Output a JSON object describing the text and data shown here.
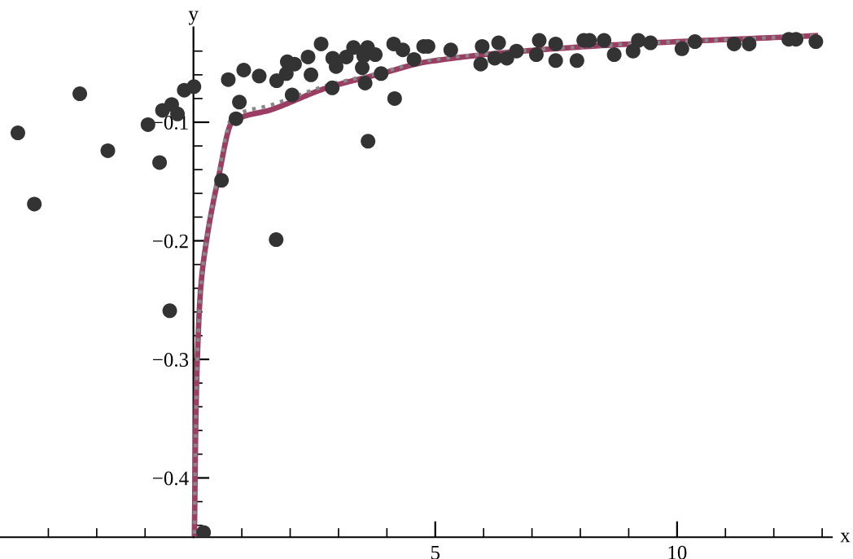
{
  "chart_data": {
    "type": "scatter",
    "xlabel": "x",
    "ylabel": "y",
    "xlim": [
      -4,
      13.2
    ],
    "ylim": [
      -0.45,
      -0.02
    ],
    "xticks": [
      {
        "value": -3,
        "label": null
      },
      {
        "value": -2,
        "label": null
      },
      {
        "value": -1,
        "label": null
      },
      {
        "value": 1,
        "label": null
      },
      {
        "value": 2,
        "label": null
      },
      {
        "value": 3,
        "label": null
      },
      {
        "value": 4,
        "label": null
      },
      5,
      {
        "value": 6,
        "label": null
      },
      {
        "value": 7,
        "label": null
      },
      {
        "value": 8,
        "label": null
      },
      {
        "value": 9,
        "label": null
      },
      10,
      {
        "value": 11,
        "label": null
      },
      {
        "value": 12,
        "label": null
      },
      {
        "value": 13,
        "label": null
      }
    ],
    "yticks": [
      {
        "value": -0.44,
        "label": null
      },
      {
        "value": -0.42,
        "label": null
      },
      -0.4,
      {
        "value": -0.38,
        "label": null
      },
      {
        "value": -0.36,
        "label": null
      },
      {
        "value": -0.34,
        "label": null
      },
      {
        "value": -0.32,
        "label": null
      },
      -0.3,
      {
        "value": -0.28,
        "label": null
      },
      {
        "value": -0.26,
        "label": null
      },
      {
        "value": -0.24,
        "label": null
      },
      {
        "value": -0.22,
        "label": null
      },
      -0.2,
      {
        "value": -0.18,
        "label": null
      },
      {
        "value": -0.16,
        "label": null
      },
      {
        "value": -0.14,
        "label": null
      },
      {
        "value": -0.12,
        "label": null
      },
      -0.1,
      {
        "value": -0.08,
        "label": null
      },
      {
        "value": -0.06,
        "label": null
      },
      {
        "value": -0.04,
        "label": null
      }
    ],
    "grid": false,
    "legend": false,
    "marker": "circle",
    "series": [
      {
        "type": "line",
        "color": "#888888",
        "line_style": "dotted",
        "marker": "none",
        "x": [
          0.02,
          0.05,
          0.08,
          0.15,
          0.27,
          0.51,
          0.8,
          1.64,
          2.76,
          3.88,
          4.84,
          8.2,
          12.86
        ],
        "values": [
          -0.447,
          -0.35,
          -0.3,
          -0.24,
          -0.2,
          -0.145,
          -0.096,
          -0.085,
          -0.069,
          -0.058,
          -0.048,
          -0.036,
          -0.027
        ]
      },
      {
        "type": "line",
        "color": "#9c3d63",
        "line_style": "solid",
        "marker": "none",
        "x": [
          0.02,
          0.05,
          0.08,
          0.15,
          0.27,
          0.51,
          0.8,
          1.64,
          2.76,
          3.88,
          4.84,
          8.2,
          12.86
        ],
        "values": [
          -0.447,
          -0.35,
          -0.3,
          -0.24,
          -0.2,
          -0.148,
          -0.1,
          -0.089,
          -0.071,
          -0.059,
          -0.049,
          -0.036,
          -0.027
        ]
      },
      {
        "color": "#333333",
        "x": [
          -3.63,
          -3.29,
          -2.35,
          -1.77,
          -0.94,
          -0.7,
          -0.64,
          -0.45,
          -0.33,
          -0.19,
          0.01,
          0.72,
          1.04,
          1.36,
          0.95,
          0.88,
          0.58,
          1.71,
          1.72,
          1.94,
          2.09,
          1.92,
          2.04,
          2.37,
          2.43,
          2.64,
          2.87,
          2.88,
          2.95,
          3.16,
          3.31,
          3.52,
          3.6,
          3.76,
          3.49,
          3.55,
          3.61,
          3.88,
          4.14,
          4.33,
          4.16,
          4.56,
          4.76,
          -0.49,
          0.21,
          4.85,
          5.32,
          5.94,
          5.97,
          6.23,
          6.31,
          6.48,
          6.68,
          7.09,
          7.15,
          7.49,
          7.49,
          7.93,
          8.07,
          8.19,
          8.49,
          8.7,
          9.09,
          9.2,
          9.45,
          10.1,
          10.37,
          11.18,
          11.49,
          12.31,
          12.46,
          12.87
        ],
        "values": [
          -0.109,
          -0.169,
          -0.076,
          -0.124,
          -0.102,
          -0.134,
          -0.09,
          -0.085,
          -0.093,
          -0.073,
          -0.07,
          -0.064,
          -0.056,
          -0.061,
          -0.083,
          -0.097,
          -0.149,
          -0.199,
          -0.065,
          -0.049,
          -0.051,
          -0.059,
          -0.077,
          -0.045,
          -0.06,
          -0.034,
          -0.071,
          -0.046,
          -0.053,
          -0.045,
          -0.037,
          -0.044,
          -0.037,
          -0.043,
          -0.054,
          -0.067,
          -0.116,
          -0.059,
          -0.034,
          -0.039,
          -0.08,
          -0.047,
          -0.036,
          -0.259,
          -0.446,
          -0.036,
          -0.039,
          -0.051,
          -0.036,
          -0.046,
          -0.033,
          -0.046,
          -0.04,
          -0.043,
          -0.031,
          -0.034,
          -0.048,
          -0.048,
          -0.031,
          -0.031,
          -0.031,
          -0.043,
          -0.04,
          -0.031,
          -0.033,
          -0.038,
          -0.032,
          -0.034,
          -0.034,
          -0.03,
          -0.03,
          -0.032
        ]
      }
    ]
  }
}
